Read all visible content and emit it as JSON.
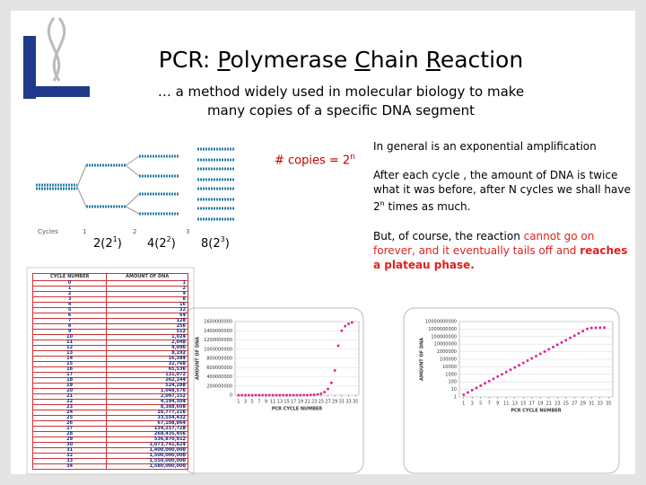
{
  "title": [
    "PCR: ",
    "P",
    "olymerase ",
    "C",
    "hain ",
    "R",
    "eaction"
  ],
  "subtitle": "… a method widely used in molecular biology to make many copies of a specific DNA segment",
  "copies": {
    "text": "# copies = 2",
    "exp": "n"
  },
  "diagram": {
    "cycles_label": "Cycles",
    "cycles": [
      "1",
      "2",
      "3"
    ],
    "counts": [
      {
        "text": "2(2",
        "exp": "1",
        "close": ")"
      },
      {
        "text": "4(2",
        "exp": "2",
        "close": ")"
      },
      {
        "text": "8(2",
        "exp": "3",
        "close": ")"
      }
    ]
  },
  "notes": {
    "p1": "In general is an exponential amplification",
    "p2": [
      "After each cycle , the amount of DNA is twice what it was before, after N cycles we shall  have 2",
      "n",
      " times as much."
    ],
    "p3": [
      "But, of course, the reaction ",
      "cannot go on forever, and it eventually tails off and ",
      "reaches a plateau phase."
    ]
  },
  "table": {
    "header": [
      "CYCLE NUMBER",
      "AMOUNT OF DNA"
    ],
    "rows": [
      [
        "0",
        "1"
      ],
      [
        "1",
        "2"
      ],
      [
        "2",
        "4"
      ],
      [
        "3",
        "8"
      ],
      [
        "4",
        "16"
      ],
      [
        "5",
        "32"
      ],
      [
        "6",
        "64"
      ],
      [
        "7",
        "128"
      ],
      [
        "8",
        "256"
      ],
      [
        "9",
        "512"
      ],
      [
        "10",
        "1,024"
      ],
      [
        "11",
        "2,048"
      ],
      [
        "12",
        "4,096"
      ],
      [
        "13",
        "8,192"
      ],
      [
        "14",
        "16,384"
      ],
      [
        "15",
        "32,768"
      ],
      [
        "16",
        "65,536"
      ],
      [
        "17",
        "131,072"
      ],
      [
        "18",
        "262,144"
      ],
      [
        "19",
        "524,288"
      ],
      [
        "20",
        "1,048,576"
      ],
      [
        "21",
        "2,097,152"
      ],
      [
        "22",
        "4,194,304"
      ],
      [
        "23",
        "8,388,608"
      ],
      [
        "24",
        "16,777,216"
      ],
      [
        "25",
        "33,554,432"
      ],
      [
        "26",
        "67,108,864"
      ],
      [
        "27",
        "134,217,728"
      ],
      [
        "28",
        "268,435,456"
      ],
      [
        "29",
        "536,870,912"
      ],
      [
        "30",
        "1,073,741,824"
      ],
      [
        "31",
        "1,400,000,000"
      ],
      [
        "32",
        "1,500,000,000"
      ],
      [
        "33",
        "1,550,000,000"
      ],
      [
        "34",
        "1,580,000,000"
      ]
    ]
  },
  "chart_data": [
    {
      "type": "scatter",
      "x_label": "PCR CYCLE NUMBER",
      "y_label": "AMOUNT OF DNA",
      "log_y": false,
      "x": [
        1,
        2,
        3,
        4,
        5,
        6,
        7,
        8,
        9,
        10,
        11,
        12,
        13,
        14,
        15,
        16,
        17,
        18,
        19,
        20,
        21,
        22,
        23,
        24,
        25,
        26,
        27,
        28,
        29,
        30,
        31,
        32,
        33,
        34
      ],
      "series": [
        {
          "name": "AMOUNT OF DNA",
          "color": "#e0208f",
          "values": [
            2,
            4,
            8,
            16,
            32,
            64,
            128,
            256,
            512,
            1024,
            2048,
            4096,
            8192,
            16384,
            32768,
            65536,
            131072,
            262144,
            524288,
            1048576,
            2097152,
            4194304,
            8388608,
            16777216,
            33554432,
            67108864,
            134217728,
            268435456,
            536870912,
            1073741824,
            1400000000,
            1500000000,
            1550000000,
            1580000000
          ]
        }
      ],
      "xlim": [
        0,
        36
      ],
      "xticks": [
        1,
        3,
        5,
        7,
        9,
        11,
        13,
        15,
        17,
        19,
        21,
        23,
        25,
        27,
        29,
        31,
        33,
        35
      ],
      "ylim": [
        0,
        1600000000
      ],
      "yticks": [
        0,
        200000000,
        400000000,
        600000000,
        800000000,
        1000000000,
        1200000000,
        1400000000,
        1600000000
      ]
    },
    {
      "type": "scatter",
      "x_label": "PCR CYCLE NUMBER",
      "y_label": "AMOUNT OF DNA",
      "log_y": true,
      "x": [
        1,
        2,
        3,
        4,
        5,
        6,
        7,
        8,
        9,
        10,
        11,
        12,
        13,
        14,
        15,
        16,
        17,
        18,
        19,
        20,
        21,
        22,
        23,
        24,
        25,
        26,
        27,
        28,
        29,
        30,
        31,
        32,
        33,
        34
      ],
      "series": [
        {
          "name": "AMOUNT OF DNA",
          "color": "#e0208f",
          "values": [
            2,
            4,
            8,
            16,
            32,
            64,
            128,
            256,
            512,
            1024,
            2048,
            4096,
            8192,
            16384,
            32768,
            65536,
            131072,
            262144,
            524288,
            1048576,
            2097152,
            4194304,
            8388608,
            16777216,
            33554432,
            67108864,
            134217728,
            268435456,
            536870912,
            1073741824,
            1400000000,
            1500000000,
            1550000000,
            1580000000
          ]
        }
      ],
      "xlim": [
        0,
        36
      ],
      "xticks": [
        1,
        3,
        5,
        7,
        9,
        11,
        13,
        15,
        17,
        19,
        21,
        23,
        25,
        27,
        29,
        31,
        33,
        35
      ],
      "ylim": [
        1,
        10000000000
      ],
      "yticks": [
        1,
        10,
        100,
        1000,
        10000,
        100000,
        1000000,
        10000000,
        100000000,
        1000000000,
        10000000000
      ]
    }
  ]
}
